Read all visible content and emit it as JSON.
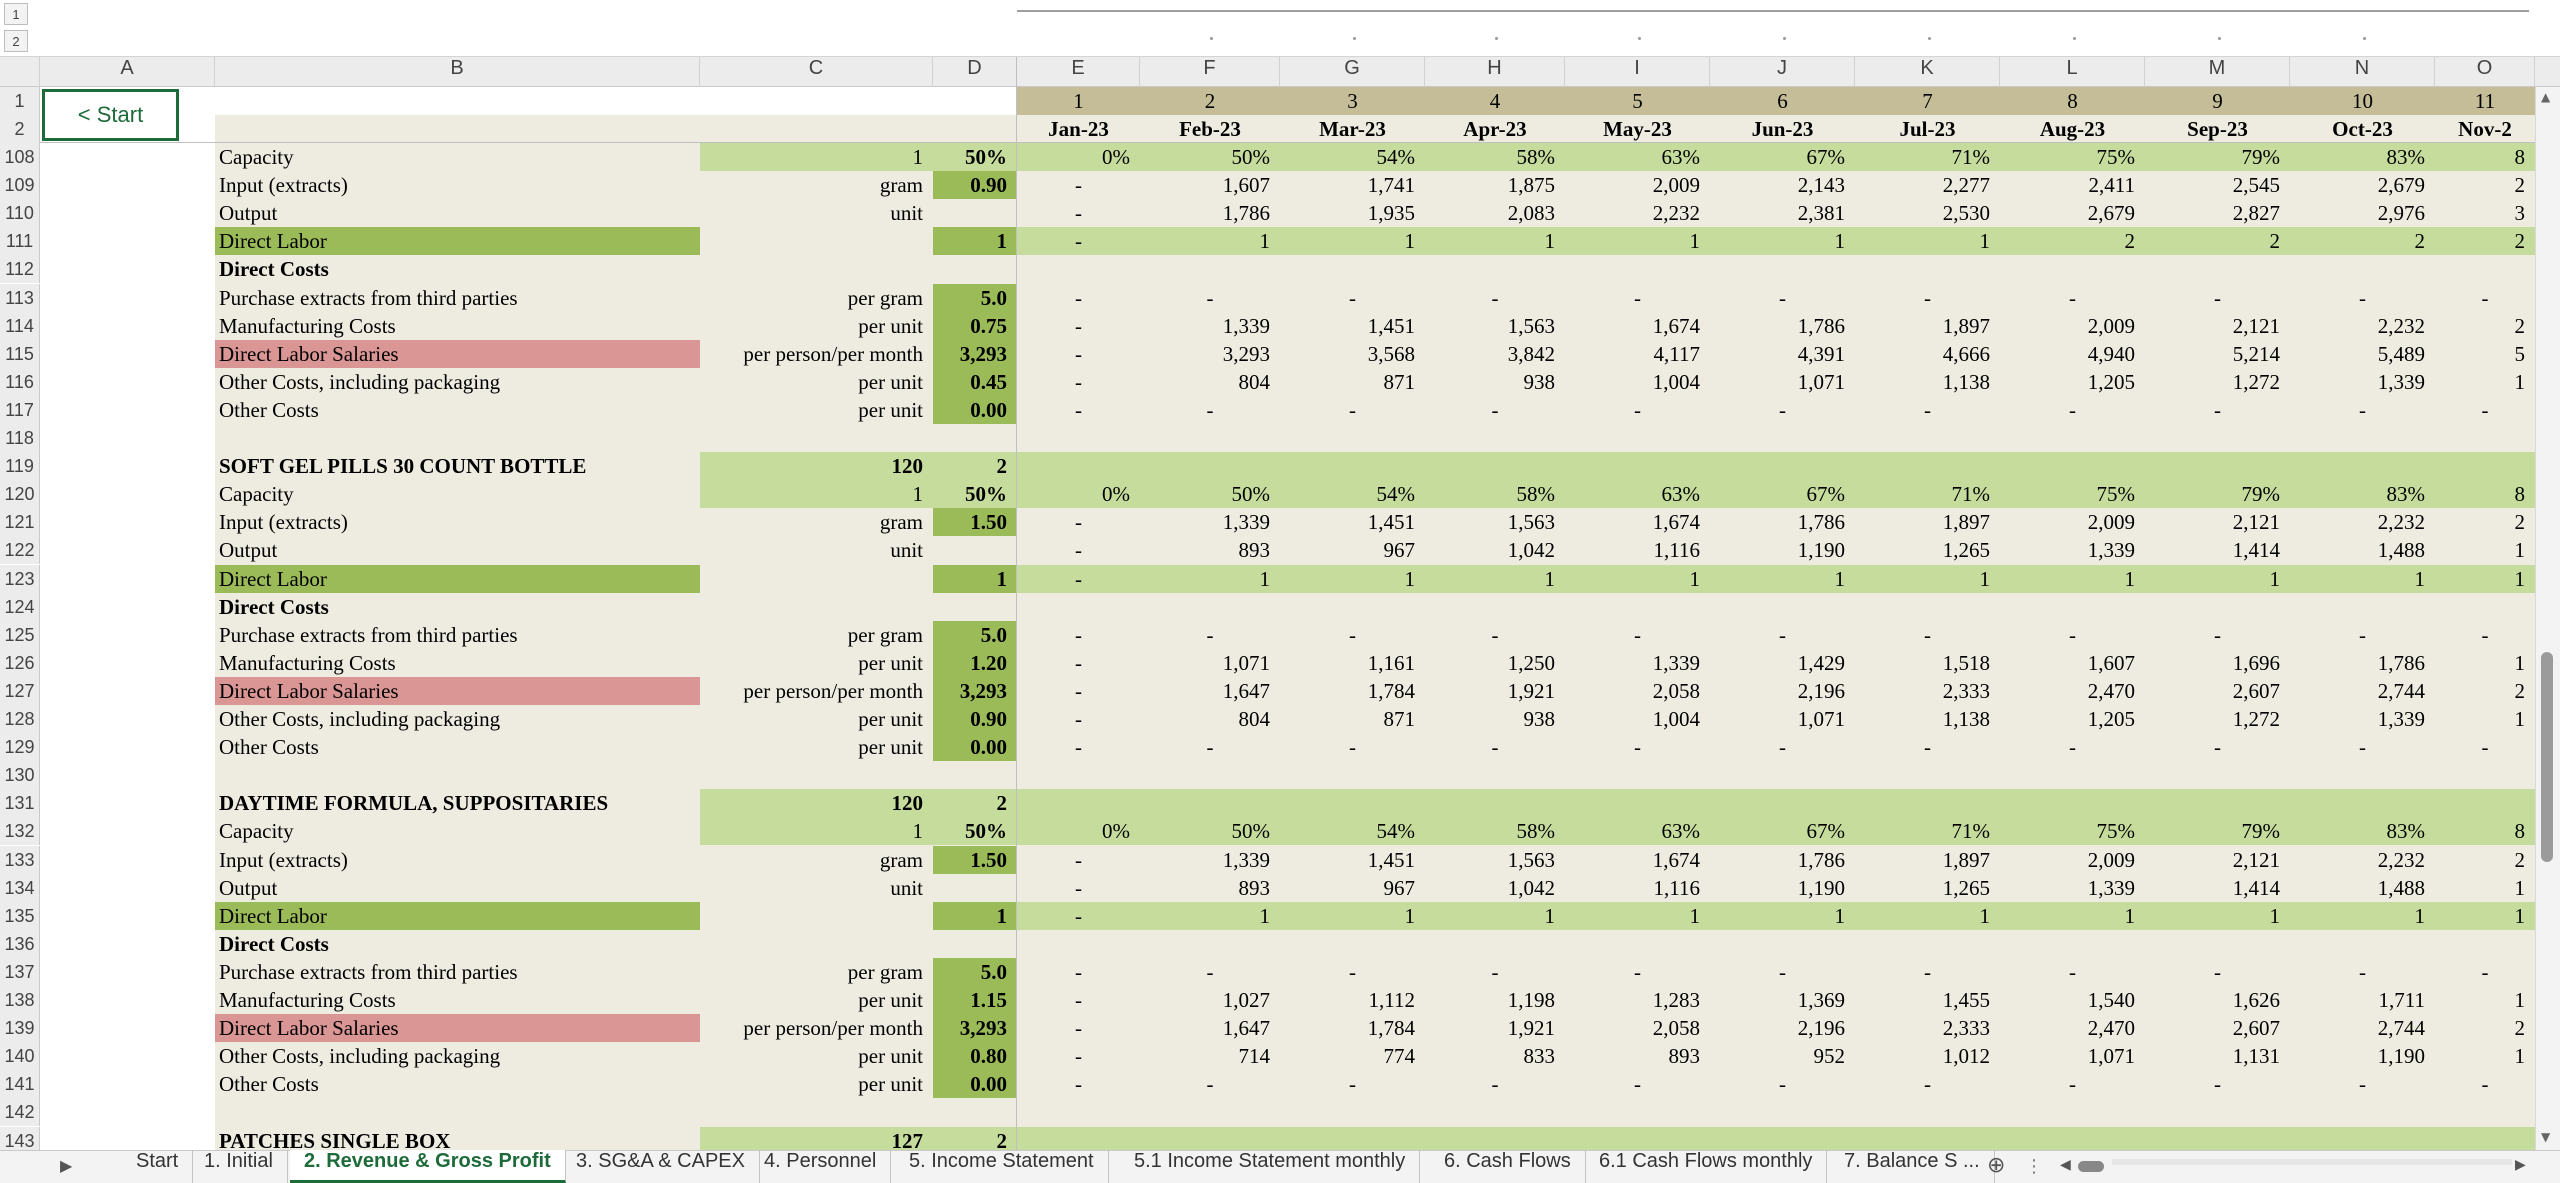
{
  "outline": {
    "levels": [
      "1",
      "2"
    ]
  },
  "columns": [
    "A",
    "B",
    "C",
    "D",
    "E",
    "F",
    "G",
    "H",
    "I",
    "J",
    "K",
    "L",
    "M",
    "N",
    "O"
  ],
  "start_button": {
    "label": "< Start"
  },
  "period_numbers": [
    "1",
    "2",
    "3",
    "4",
    "5",
    "6",
    "7",
    "8",
    "9",
    "10",
    "11"
  ],
  "months": [
    "Jan-23",
    "Feb-23",
    "Mar-23",
    "Apr-23",
    "May-23",
    "Jun-23",
    "Jul-23",
    "Aug-23",
    "Sep-23",
    "Oct-23",
    "Nov-2"
  ],
  "rows": [
    {
      "n": "108",
      "style": "green",
      "label": "Capacity",
      "unit": "1",
      "param": "50%",
      "param_bg": "#c5dc9d",
      "vals": [
        "0%",
        "50%",
        "54%",
        "58%",
        "63%",
        "67%",
        "71%",
        "75%",
        "79%",
        "83%",
        "8"
      ]
    },
    {
      "n": "109",
      "style": "plain",
      "label": "Input (extracts)",
      "unit": "gram",
      "param": "0.90",
      "param_bg": "#9bbb59",
      "vals": [
        "-",
        "1,607",
        "1,741",
        "1,875",
        "2,009",
        "2,143",
        "2,277",
        "2,411",
        "2,545",
        "2,679",
        "2"
      ]
    },
    {
      "n": "110",
      "style": "plain",
      "label": "Output",
      "unit": "unit",
      "param": "",
      "param_bg": "",
      "vals": [
        "-",
        "1,786",
        "1,935",
        "2,083",
        "2,232",
        "2,381",
        "2,530",
        "2,679",
        "2,827",
        "2,976",
        "3"
      ]
    },
    {
      "n": "111",
      "style": "labor",
      "label": "Direct Labor",
      "unit": "",
      "param": "1",
      "param_bg": "#9bbb59",
      "vals": [
        "-",
        "1",
        "1",
        "1",
        "1",
        "1",
        "1",
        "2",
        "2",
        "2",
        "2"
      ]
    },
    {
      "n": "112",
      "style": "section",
      "label": "Direct Costs",
      "unit": "",
      "param": "",
      "param_bg": "",
      "vals": []
    },
    {
      "n": "113",
      "style": "plain",
      "label": "Purchase extracts from third parties",
      "unit": "per gram",
      "param": "5.0",
      "param_bg": "#9bbb59",
      "vals": [
        "-",
        "-",
        "-",
        "-",
        "-",
        "-",
        "-",
        "-",
        "-",
        "-",
        "-"
      ]
    },
    {
      "n": "114",
      "style": "plain",
      "label": "Manufacturing Costs",
      "unit": "per unit",
      "param": "0.75",
      "param_bg": "#9bbb59",
      "vals": [
        "-",
        "1,339",
        "1,451",
        "1,563",
        "1,674",
        "1,786",
        "1,897",
        "2,009",
        "2,121",
        "2,232",
        "2"
      ]
    },
    {
      "n": "115",
      "style": "salary",
      "label": "Direct Labor Salaries",
      "unit": "per person/per month",
      "param": "3,293",
      "param_bg": "#9bbb59",
      "vals": [
        "-",
        "3,293",
        "3,568",
        "3,842",
        "4,117",
        "4,391",
        "4,666",
        "4,940",
        "5,214",
        "5,489",
        "5"
      ]
    },
    {
      "n": "116",
      "style": "plain",
      "label": "Other Costs, including packaging",
      "unit": "per unit",
      "param": "0.45",
      "param_bg": "#9bbb59",
      "vals": [
        "-",
        "804",
        "871",
        "938",
        "1,004",
        "1,071",
        "1,138",
        "1,205",
        "1,272",
        "1,339",
        "1"
      ]
    },
    {
      "n": "117",
      "style": "plain",
      "label": "Other Costs",
      "unit": "per unit",
      "param": "0.00",
      "param_bg": "#9bbb59",
      "vals": [
        "-",
        "-",
        "-",
        "-",
        "-",
        "-",
        "-",
        "-",
        "-",
        "-",
        "-"
      ]
    },
    {
      "n": "118",
      "style": "blank",
      "label": "",
      "unit": "",
      "param": "",
      "param_bg": "",
      "vals": []
    },
    {
      "n": "119",
      "style": "product",
      "label": "SOFT GEL PILLS 30 COUNT BOTTLE",
      "unit": "120",
      "param": "2",
      "param_bg": "#c5dc9d",
      "vals": []
    },
    {
      "n": "120",
      "style": "green",
      "label": "Capacity",
      "unit": "1",
      "param": "50%",
      "param_bg": "#c5dc9d",
      "vals": [
        "0%",
        "50%",
        "54%",
        "58%",
        "63%",
        "67%",
        "71%",
        "75%",
        "79%",
        "83%",
        "8"
      ]
    },
    {
      "n": "121",
      "style": "plain",
      "label": "Input (extracts)",
      "unit": "gram",
      "param": "1.50",
      "param_bg": "#9bbb59",
      "vals": [
        "-",
        "1,339",
        "1,451",
        "1,563",
        "1,674",
        "1,786",
        "1,897",
        "2,009",
        "2,121",
        "2,232",
        "2"
      ]
    },
    {
      "n": "122",
      "style": "plain",
      "label": "Output",
      "unit": "unit",
      "param": "",
      "param_bg": "",
      "vals": [
        "-",
        "893",
        "967",
        "1,042",
        "1,116",
        "1,190",
        "1,265",
        "1,339",
        "1,414",
        "1,488",
        "1"
      ]
    },
    {
      "n": "123",
      "style": "labor",
      "label": "Direct Labor",
      "unit": "",
      "param": "1",
      "param_bg": "#9bbb59",
      "vals": [
        "-",
        "1",
        "1",
        "1",
        "1",
        "1",
        "1",
        "1",
        "1",
        "1",
        "1"
      ]
    },
    {
      "n": "124",
      "style": "section",
      "label": "Direct Costs",
      "unit": "",
      "param": "",
      "param_bg": "",
      "vals": []
    },
    {
      "n": "125",
      "style": "plain",
      "label": "Purchase extracts from third parties",
      "unit": "per gram",
      "param": "5.0",
      "param_bg": "#9bbb59",
      "vals": [
        "-",
        "-",
        "-",
        "-",
        "-",
        "-",
        "-",
        "-",
        "-",
        "-",
        "-"
      ]
    },
    {
      "n": "126",
      "style": "plain",
      "label": "Manufacturing Costs",
      "unit": "per unit",
      "param": "1.20",
      "param_bg": "#9bbb59",
      "vals": [
        "-",
        "1,071",
        "1,161",
        "1,250",
        "1,339",
        "1,429",
        "1,518",
        "1,607",
        "1,696",
        "1,786",
        "1"
      ]
    },
    {
      "n": "127",
      "style": "salary",
      "label": "Direct Labor Salaries",
      "unit": "per person/per month",
      "param": "3,293",
      "param_bg": "#9bbb59",
      "vals": [
        "-",
        "1,647",
        "1,784",
        "1,921",
        "2,058",
        "2,196",
        "2,333",
        "2,470",
        "2,607",
        "2,744",
        "2"
      ]
    },
    {
      "n": "128",
      "style": "plain",
      "label": "Other Costs, including packaging",
      "unit": "per unit",
      "param": "0.90",
      "param_bg": "#9bbb59",
      "vals": [
        "-",
        "804",
        "871",
        "938",
        "1,004",
        "1,071",
        "1,138",
        "1,205",
        "1,272",
        "1,339",
        "1"
      ]
    },
    {
      "n": "129",
      "style": "plain",
      "label": "Other Costs",
      "unit": "per unit",
      "param": "0.00",
      "param_bg": "#9bbb59",
      "vals": [
        "-",
        "-",
        "-",
        "-",
        "-",
        "-",
        "-",
        "-",
        "-",
        "-",
        "-"
      ]
    },
    {
      "n": "130",
      "style": "blank",
      "label": "",
      "unit": "",
      "param": "",
      "param_bg": "",
      "vals": []
    },
    {
      "n": "131",
      "style": "product",
      "label": "DAYTIME FORMULA, SUPPOSITARIES",
      "unit": "120",
      "param": "2",
      "param_bg": "#c5dc9d",
      "vals": []
    },
    {
      "n": "132",
      "style": "green",
      "label": "Capacity",
      "unit": "1",
      "param": "50%",
      "param_bg": "#c5dc9d",
      "vals": [
        "0%",
        "50%",
        "54%",
        "58%",
        "63%",
        "67%",
        "71%",
        "75%",
        "79%",
        "83%",
        "8"
      ]
    },
    {
      "n": "133",
      "style": "plain",
      "label": "Input (extracts)",
      "unit": "gram",
      "param": "1.50",
      "param_bg": "#9bbb59",
      "vals": [
        "-",
        "1,339",
        "1,451",
        "1,563",
        "1,674",
        "1,786",
        "1,897",
        "2,009",
        "2,121",
        "2,232",
        "2"
      ]
    },
    {
      "n": "134",
      "style": "plain",
      "label": "Output",
      "unit": "unit",
      "param": "",
      "param_bg": "",
      "vals": [
        "-",
        "893",
        "967",
        "1,042",
        "1,116",
        "1,190",
        "1,265",
        "1,339",
        "1,414",
        "1,488",
        "1"
      ]
    },
    {
      "n": "135",
      "style": "labor",
      "label": "Direct Labor",
      "unit": "",
      "param": "1",
      "param_bg": "#9bbb59",
      "vals": [
        "-",
        "1",
        "1",
        "1",
        "1",
        "1",
        "1",
        "1",
        "1",
        "1",
        "1"
      ]
    },
    {
      "n": "136",
      "style": "section",
      "label": "Direct Costs",
      "unit": "",
      "param": "",
      "param_bg": "",
      "vals": []
    },
    {
      "n": "137",
      "style": "plain",
      "label": "Purchase extracts from third parties",
      "unit": "per gram",
      "param": "5.0",
      "param_bg": "#9bbb59",
      "vals": [
        "-",
        "-",
        "-",
        "-",
        "-",
        "-",
        "-",
        "-",
        "-",
        "-",
        "-"
      ]
    },
    {
      "n": "138",
      "style": "plain",
      "label": "Manufacturing Costs",
      "unit": "per unit",
      "param": "1.15",
      "param_bg": "#9bbb59",
      "vals": [
        "-",
        "1,027",
        "1,112",
        "1,198",
        "1,283",
        "1,369",
        "1,455",
        "1,540",
        "1,626",
        "1,711",
        "1"
      ]
    },
    {
      "n": "139",
      "style": "salary",
      "label": "Direct Labor Salaries",
      "unit": "per person/per month",
      "param": "3,293",
      "param_bg": "#9bbb59",
      "vals": [
        "-",
        "1,647",
        "1,784",
        "1,921",
        "2,058",
        "2,196",
        "2,333",
        "2,470",
        "2,607",
        "2,744",
        "2"
      ]
    },
    {
      "n": "140",
      "style": "plain",
      "label": "Other Costs, including packaging",
      "unit": "per unit",
      "param": "0.80",
      "param_bg": "#9bbb59",
      "vals": [
        "-",
        "714",
        "774",
        "833",
        "893",
        "952",
        "1,012",
        "1,071",
        "1,131",
        "1,190",
        "1"
      ]
    },
    {
      "n": "141",
      "style": "plain",
      "label": "Other Costs",
      "unit": "per unit",
      "param": "0.00",
      "param_bg": "#9bbb59",
      "vals": [
        "-",
        "-",
        "-",
        "-",
        "-",
        "-",
        "-",
        "-",
        "-",
        "-",
        "-"
      ]
    },
    {
      "n": "142",
      "style": "blank",
      "label": "",
      "unit": "",
      "param": "",
      "param_bg": "",
      "vals": []
    },
    {
      "n": "143",
      "style": "product",
      "label": "PATCHES SINGLE BOX",
      "unit": "127",
      "param": "2",
      "param_bg": "#c5dc9d",
      "vals": []
    }
  ],
  "colors": {
    "sheet_bg": "#eeece1",
    "green_row": "#c5dc9d",
    "param_green": "#9bbb59",
    "labor_label": "#9bbb59",
    "salary_label": "#da9694",
    "header_band": "#c4bd97",
    "active_tab": "#1e6b3a"
  },
  "tabs": [
    {
      "label": "Start",
      "active": false
    },
    {
      "label": "1. Initial",
      "active": false
    },
    {
      "label": "2. Revenue & Gross Profit",
      "active": true
    },
    {
      "label": "3. SG&A & CAPEX",
      "active": false
    },
    {
      "label": "4. Personnel",
      "active": false
    },
    {
      "label": "5. Income Statement",
      "active": false
    },
    {
      "label": "5.1 Income Statement monthly",
      "active": false
    },
    {
      "label": "6. Cash Flows",
      "active": false
    },
    {
      "label": "6.1 Cash Flows monthly",
      "active": false
    },
    {
      "label": "7. Balance S ...",
      "active": false
    }
  ],
  "icons": {
    "next_sheet": "triangle-right-icon",
    "add_sheet": "plus-circle-icon",
    "more": "vertical-ellipsis-icon",
    "scroll_left": "triangle-left-icon",
    "scroll_right": "triangle-right-icon",
    "scroll_up": "triangle-up-icon",
    "scroll_down": "triangle-down-icon"
  }
}
